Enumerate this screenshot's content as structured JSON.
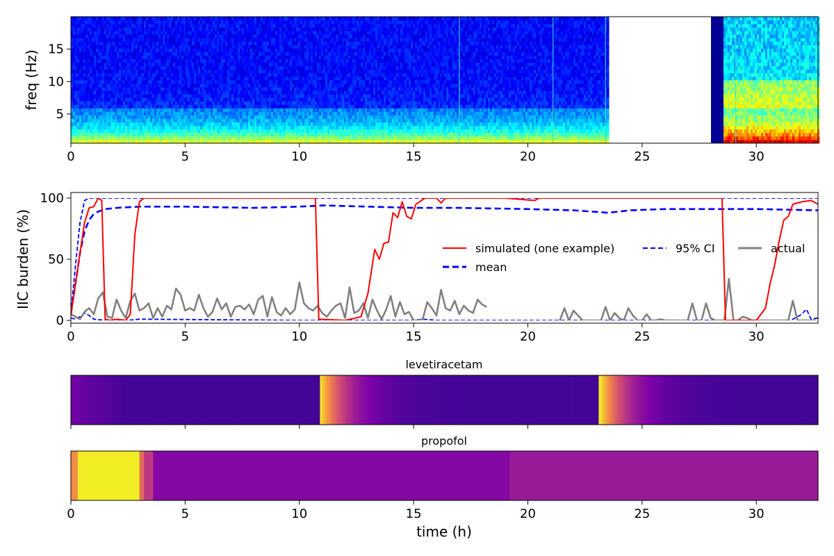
{
  "chart_data": [
    {
      "type": "heatmap",
      "name": "spectrogram",
      "ylabel": "freq (Hz)",
      "ylim": [
        0.5,
        20
      ],
      "yticks": [
        5,
        10,
        15
      ],
      "xlim": [
        0,
        32.7
      ],
      "xticks": [
        0,
        5,
        10,
        15,
        20,
        25,
        30
      ],
      "colormap": "jet",
      "segments": [
        {
          "start": 0,
          "end": 23.5,
          "state": "low-power"
        },
        {
          "start": 23.5,
          "end": 27.95,
          "state": "missing"
        },
        {
          "start": 27.95,
          "end": 28.5,
          "state": "zero"
        },
        {
          "start": 28.5,
          "end": 32.7,
          "state": "high-power"
        }
      ],
      "bright_lines": [
        17.0,
        21.1,
        23.4,
        29.1
      ]
    },
    {
      "type": "line",
      "name": "iic-burden",
      "ylabel": "IIC burden (%)",
      "ylim": [
        0,
        100
      ],
      "yticks": [
        0,
        50,
        100
      ],
      "xlim": [
        0,
        32.7
      ],
      "xticks": [
        0,
        5,
        10,
        15,
        20,
        25,
        30
      ],
      "series": [
        {
          "name": "simulated (one example)",
          "color": "#ff0000",
          "style": "solid",
          "x": [
            0,
            0.2,
            0.4,
            0.6,
            0.8,
            1.0,
            1.2,
            1.35,
            1.5,
            1.7,
            2.0,
            2.4,
            2.6,
            2.8,
            3.0,
            3.2,
            10.7,
            10.85,
            12.0,
            12.7,
            13.0,
            13.3,
            13.5,
            13.7,
            13.9,
            14.1,
            14.3,
            14.5,
            14.7,
            14.9,
            15.1,
            15.5,
            16.0,
            16.2,
            16.4,
            17.0,
            19.0,
            20.3,
            20.5,
            28.5,
            28.65,
            30.0,
            30.2,
            30.4,
            30.6,
            30.8,
            31.0,
            31.2,
            31.4,
            31.6,
            32.0,
            32.4,
            32.7
          ],
          "y": [
            4,
            30,
            55,
            80,
            92,
            93,
            100,
            98,
            1,
            0,
            1,
            0,
            5,
            70,
            97,
            100,
            100,
            1,
            0,
            3,
            22,
            58,
            50,
            63,
            64,
            88,
            84,
            97,
            85,
            83,
            95,
            100,
            100,
            96,
            100,
            100,
            100,
            98,
            100,
            100,
            0,
            0,
            5,
            10,
            30,
            45,
            65,
            82,
            85,
            95,
            97,
            98,
            95
          ]
        },
        {
          "name": "mean",
          "color": "#0000ff",
          "style": "dashed-thick",
          "x": [
            0,
            0.2,
            0.4,
            0.6,
            0.8,
            1.0,
            1.2,
            1.5,
            2.0,
            3.0,
            5.0,
            8.0,
            10.0,
            11.0,
            13.0,
            15.0,
            17.0,
            20.0,
            22.0,
            23.5,
            24.5,
            26.0,
            28.0,
            30.0,
            32.7
          ],
          "y": [
            5,
            30,
            55,
            73,
            82,
            87,
            89,
            91,
            92,
            93,
            93,
            92,
            93,
            94,
            93,
            92,
            92,
            91,
            90,
            88,
            90,
            91,
            91,
            91,
            90
          ]
        },
        {
          "name": "95% CI",
          "color": "#0000ff",
          "style": "dashed-thin",
          "x": [
            0,
            0.2,
            0.4,
            0.6,
            0.8,
            32.7
          ],
          "y": [
            6,
            45,
            80,
            98,
            100,
            100
          ]
        },
        {
          "name": "95% CI lower",
          "color": "#0000ff",
          "style": "dashed-thin",
          "x": [
            0,
            0.2,
            0.4,
            0.6,
            0.8,
            1.0,
            1.5,
            2.0,
            2.5,
            3.0,
            10.0,
            15.0,
            15.4,
            16.0,
            31.5,
            31.9,
            32.2,
            32.4,
            32.7
          ],
          "y": [
            2,
            1,
            3,
            6,
            4,
            1,
            0,
            0,
            0,
            1,
            0,
            0,
            1,
            0,
            0,
            4,
            9,
            1,
            2
          ]
        },
        {
          "name": "actual",
          "color": "#808080",
          "style": "solid-thick",
          "x": [
            0,
            0.2,
            0.4,
            0.6,
            0.8,
            1.0,
            1.2,
            1.4,
            1.6,
            1.8,
            2.0,
            2.2,
            2.4,
            2.6,
            2.8,
            3.0,
            3.2,
            3.4,
            3.6,
            3.8,
            4.0,
            4.2,
            4.4,
            4.6,
            4.8,
            5.0,
            5.2,
            5.4,
            5.6,
            5.8,
            6.0,
            6.2,
            6.4,
            6.6,
            6.8,
            7.0,
            7.2,
            7.4,
            7.6,
            7.8,
            8.0,
            8.2,
            8.4,
            8.6,
            8.8,
            9.0,
            9.2,
            9.4,
            9.6,
            9.8,
            10.0,
            10.2,
            10.4,
            10.6,
            10.8,
            11.0,
            11.2,
            11.4,
            11.6,
            11.8,
            12.0,
            12.2,
            12.4,
            12.6,
            12.8,
            13.0,
            13.2,
            13.4,
            13.6,
            13.8,
            14.0,
            14.2,
            14.4,
            14.6,
            14.8,
            15.0,
            15.2,
            15.4,
            15.6,
            15.8,
            16.0,
            16.2,
            16.4,
            16.6,
            16.8,
            17.0,
            17.2,
            17.4,
            17.6,
            17.8,
            18.0,
            18.2
          ],
          "y": [
            5,
            3,
            1,
            7,
            10,
            5,
            18,
            23,
            3,
            2,
            17,
            8,
            2,
            16,
            22,
            8,
            10,
            14,
            2,
            10,
            3,
            12,
            9,
            26,
            21,
            8,
            10,
            8,
            21,
            10,
            3,
            7,
            18,
            9,
            14,
            3,
            11,
            12,
            9,
            13,
            5,
            17,
            20,
            3,
            19,
            7,
            4,
            10,
            5,
            9,
            31,
            14,
            10,
            8,
            12,
            6,
            3,
            8,
            12,
            14,
            2,
            27,
            6,
            8,
            14,
            2,
            17,
            8,
            1,
            9,
            20,
            3,
            15,
            5,
            7,
            0,
            0,
            1,
            15,
            10,
            4,
            25,
            10,
            8,
            16,
            5,
            12,
            8,
            6,
            17,
            13,
            11
          ]
        },
        {
          "name": "actual (later)",
          "color": "#808080",
          "style": "solid-thick",
          "x": [
            21.4,
            21.6,
            21.8,
            22.0,
            22.2,
            22.4,
            22.6,
            22.8,
            23.0,
            23.2,
            23.4,
            23.6,
            23.8,
            24.0,
            24.2,
            24.4,
            24.6,
            24.8,
            25.0,
            25.2,
            25.4,
            25.6,
            25.8,
            26.0,
            26.2,
            26.4,
            26.6,
            26.8,
            27.0,
            27.2,
            27.4,
            27.6,
            27.8,
            28.0,
            28.2,
            28.4,
            28.6,
            28.8,
            29.0,
            29.2,
            29.4,
            29.6,
            29.8,
            30.0,
            30.2,
            30.4,
            30.6,
            30.8,
            31.0,
            31.2,
            31.4,
            31.6,
            31.8,
            32.0,
            32.2,
            32.4,
            32.6
          ],
          "y": [
            0,
            10,
            0,
            8,
            4,
            0,
            0,
            0,
            0,
            0,
            11,
            0,
            6,
            2,
            0,
            10,
            4,
            0,
            0,
            5,
            0,
            0,
            1,
            0,
            0,
            0,
            0,
            0,
            0,
            14,
            0,
            0,
            14,
            2,
            0,
            0,
            0,
            34,
            0,
            0,
            3,
            2,
            0,
            0,
            0,
            0,
            0,
            0,
            0,
            0,
            0,
            16,
            0,
            0,
            0,
            0,
            0
          ]
        }
      ],
      "legend": {
        "position": "center-right",
        "columns": 3
      },
      "legend_labels": {
        "simulated": "simulated (one example)",
        "mean": "mean",
        "ci": "95% CI",
        "actual": "actual"
      }
    },
    {
      "type": "heatmap",
      "name": "levetiracetam",
      "title": "levetiracetam",
      "colormap": "plasma",
      "xlim": [
        0,
        32.7
      ],
      "xticks": [
        0,
        5,
        10,
        15,
        20,
        25,
        30
      ],
      "doses": [
        10.8,
        23.05
      ],
      "baseline_level": 0.12,
      "peak_level": 1.0,
      "decay_hours": 3.5
    },
    {
      "type": "heatmap",
      "name": "propofol",
      "title": "propofol",
      "colormap": "plasma",
      "xlim": [
        0,
        32.7
      ],
      "xticks": [
        0,
        5,
        10,
        15,
        20,
        25,
        30
      ],
      "xlabel": "time (h)",
      "levels": [
        {
          "start": 0.0,
          "end": 0.3,
          "level": 0.72
        },
        {
          "start": 0.3,
          "end": 3.0,
          "level": 0.97
        },
        {
          "start": 3.0,
          "end": 3.2,
          "level": 0.62
        },
        {
          "start": 3.2,
          "end": 3.6,
          "level": 0.45
        },
        {
          "start": 3.6,
          "end": 19.2,
          "level": 0.27
        },
        {
          "start": 19.2,
          "end": 32.7,
          "level": 0.34
        }
      ]
    }
  ],
  "labels": {
    "spec_ylabel": "freq (Hz)",
    "iic_ylabel": "IIC burden (%)",
    "lev_title": "levetiracetam",
    "prop_title": "propofol",
    "xlabel": "time (h)",
    "x_ticks": [
      "0",
      "5",
      "10",
      "15",
      "20",
      "25",
      "30"
    ],
    "spec_yticks": [
      "5",
      "10",
      "15"
    ],
    "iic_yticks": [
      "0",
      "50",
      "100"
    ]
  }
}
